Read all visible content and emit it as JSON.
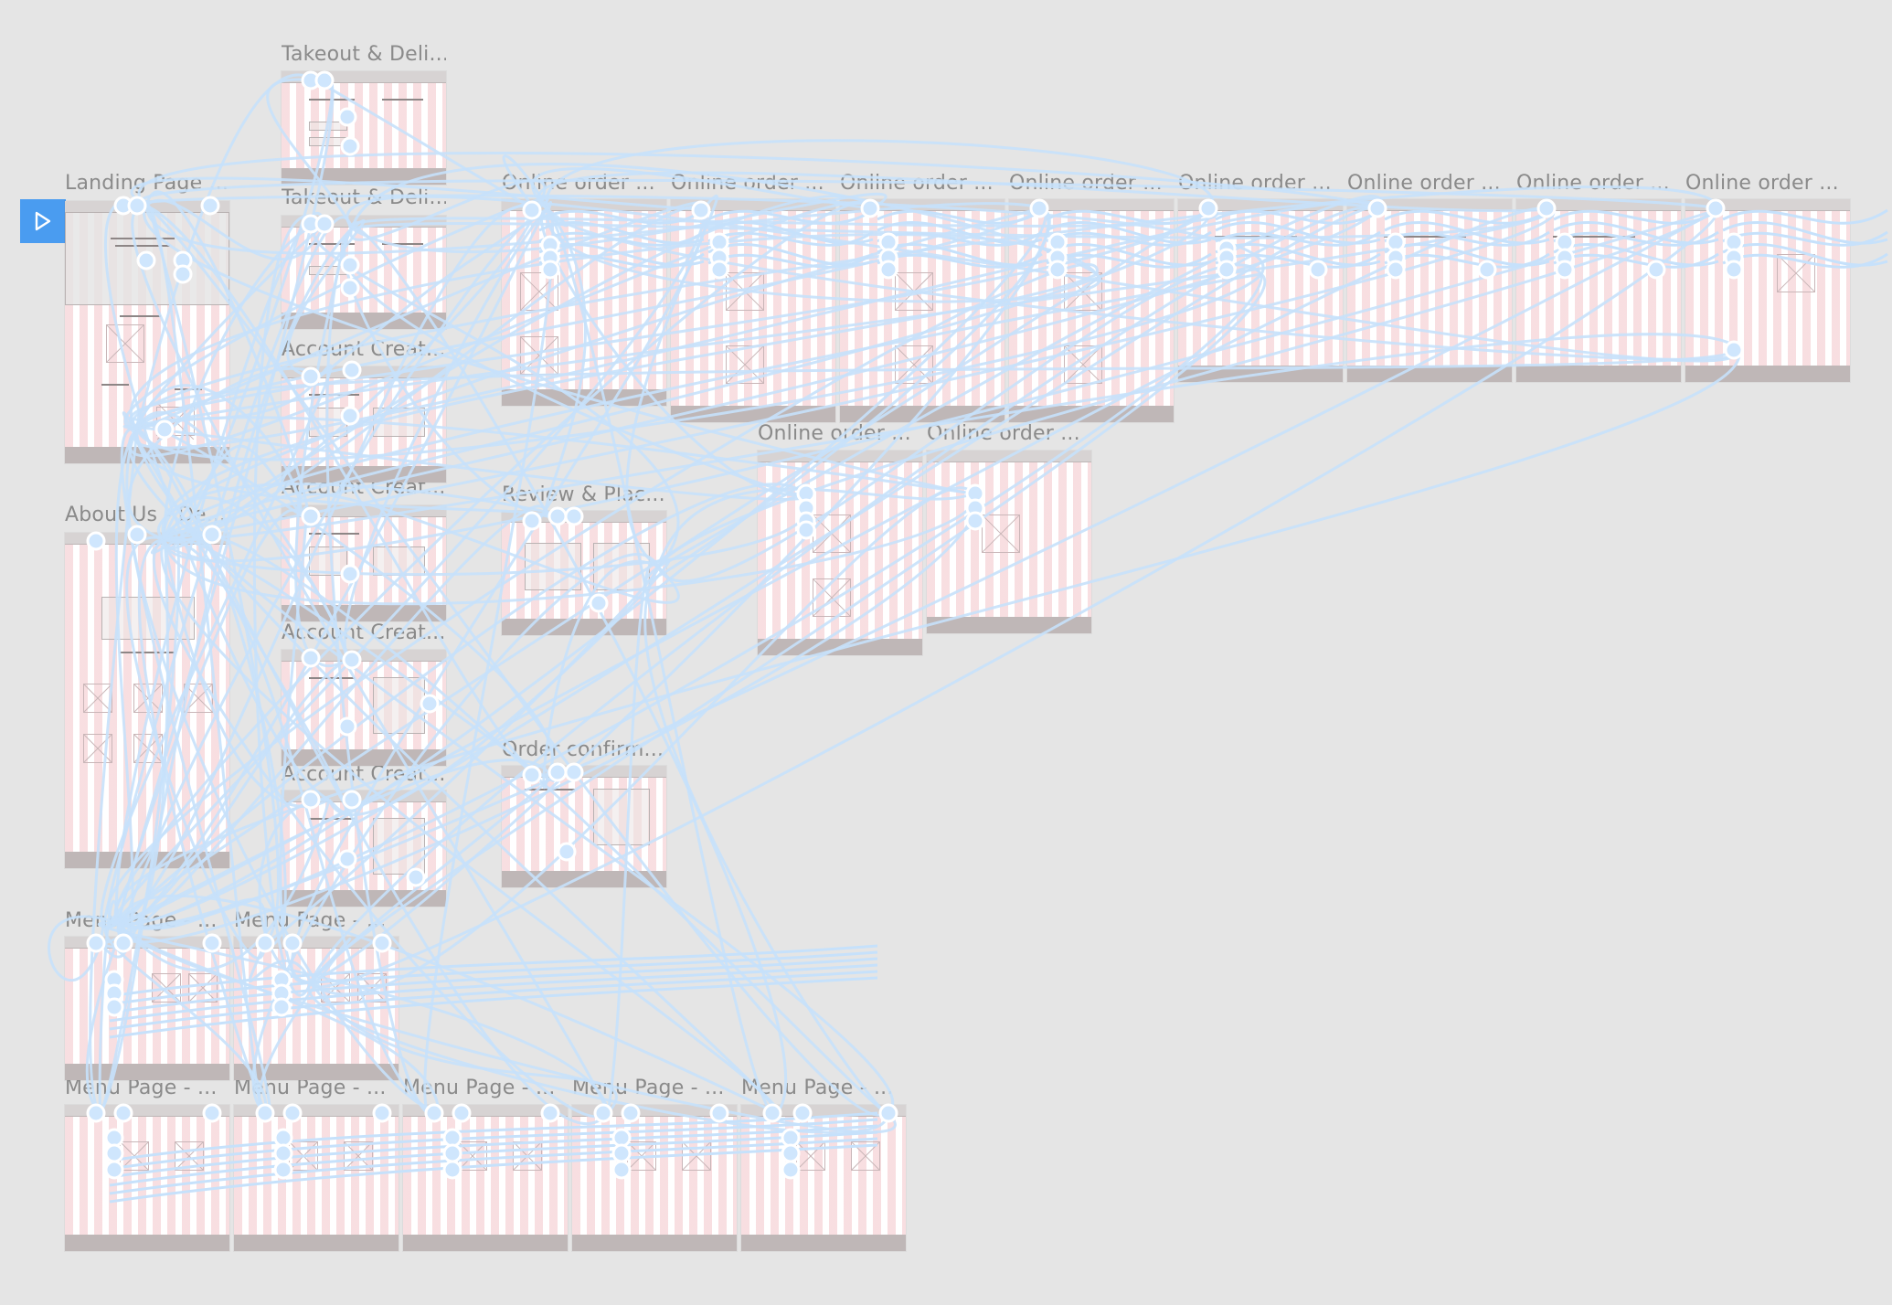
{
  "canvas": {
    "background": "#e5e5e5",
    "wire_color": "#c6e1fb",
    "node_color": "#cfe6fd",
    "frame_label_color": "#8a8a8a",
    "grid_column_color": "#f2c4c8"
  },
  "toolbar": {
    "play_icon": "play-icon",
    "play_color": "#4a9cf0"
  },
  "frames": [
    {
      "id": "landing",
      "label": "Landing Page ..."
    },
    {
      "id": "takeout1",
      "label": "Takeout & Deli..."
    },
    {
      "id": "takeout2",
      "label": "Takeout & Deli..."
    },
    {
      "id": "account1",
      "label": "Account Creat..."
    },
    {
      "id": "account2",
      "label": "Account Creat..."
    },
    {
      "id": "account3",
      "label": "Account Creat..."
    },
    {
      "id": "account4",
      "label": "Account Creat..."
    },
    {
      "id": "about",
      "label": "About Us - De..."
    },
    {
      "id": "online1",
      "label": "Online order ..."
    },
    {
      "id": "online2",
      "label": "Online order ..."
    },
    {
      "id": "online3",
      "label": "Online order ..."
    },
    {
      "id": "online4",
      "label": "Online order ..."
    },
    {
      "id": "online5",
      "label": "Online order ..."
    },
    {
      "id": "online6",
      "label": "Online order ..."
    },
    {
      "id": "online7",
      "label": "Online order ..."
    },
    {
      "id": "online8",
      "label": "Online order ..."
    },
    {
      "id": "online9",
      "label": "Online order ..."
    },
    {
      "id": "online10",
      "label": "Online order ..."
    },
    {
      "id": "review",
      "label": "Review & Plac..."
    },
    {
      "id": "confirm",
      "label": "Order confirm..."
    },
    {
      "id": "menu1",
      "label": "Menu Page - ..."
    },
    {
      "id": "menu2",
      "label": "Menu Page - ..."
    },
    {
      "id": "menu3",
      "label": "Menu Page - ..."
    },
    {
      "id": "menu4",
      "label": "Menu Page - ..."
    },
    {
      "id": "menu5",
      "label": "Menu Page - ..."
    },
    {
      "id": "menu6",
      "label": "Menu Page - ..."
    },
    {
      "id": "menu7",
      "label": "Menu Page - ..."
    }
  ]
}
